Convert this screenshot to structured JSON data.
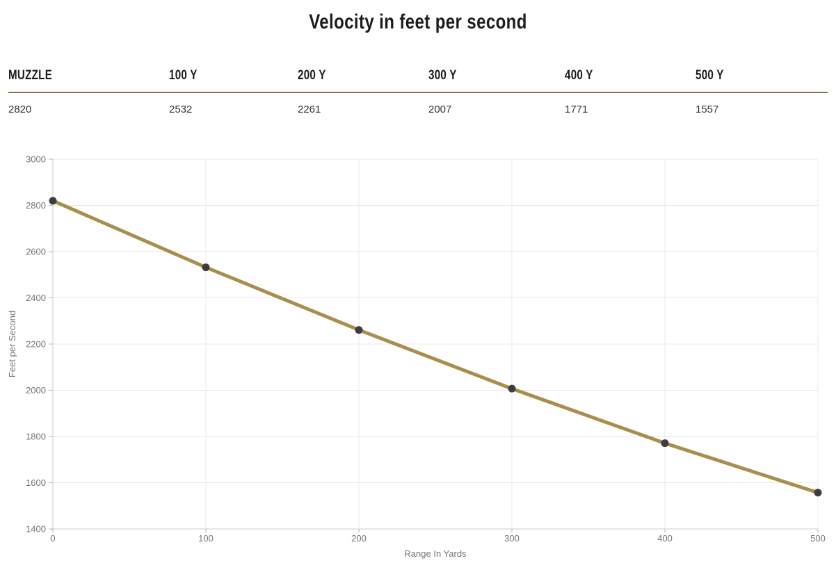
{
  "title": "Velocity in feet per second",
  "table": {
    "headers": [
      "MUZZLE",
      "100 Y",
      "200 Y",
      "300 Y",
      "400 Y",
      "500 Y"
    ],
    "values": [
      "2820",
      "2532",
      "2261",
      "2007",
      "1771",
      "1557"
    ]
  },
  "chart_data": {
    "type": "line",
    "x": [
      0,
      100,
      200,
      300,
      400,
      500
    ],
    "series": [
      {
        "name": "Velocity",
        "values": [
          2820,
          2532,
          2261,
          2007,
          1771,
          1557
        ]
      }
    ],
    "title": "",
    "xlabel": "Range In Yards",
    "ylabel": "Feet per Second",
    "xlim": [
      0,
      500
    ],
    "ylim": [
      1400,
      3000
    ],
    "x_ticks": [
      0,
      100,
      200,
      300,
      400,
      500
    ],
    "y_ticks": [
      1400,
      1600,
      1800,
      2000,
      2200,
      2400,
      2600,
      2800,
      3000
    ],
    "grid": true,
    "legend": "none"
  },
  "colors": {
    "line": "#a98e4e",
    "point": "#3d3d3d",
    "grid": "#e9e9e9",
    "axis": "#cccccc",
    "tick": "#b5b5b5",
    "tick_text": "#757575",
    "table_rule": "#84714a",
    "heading_text": "#1c1c1c",
    "value_text": "#333333"
  }
}
